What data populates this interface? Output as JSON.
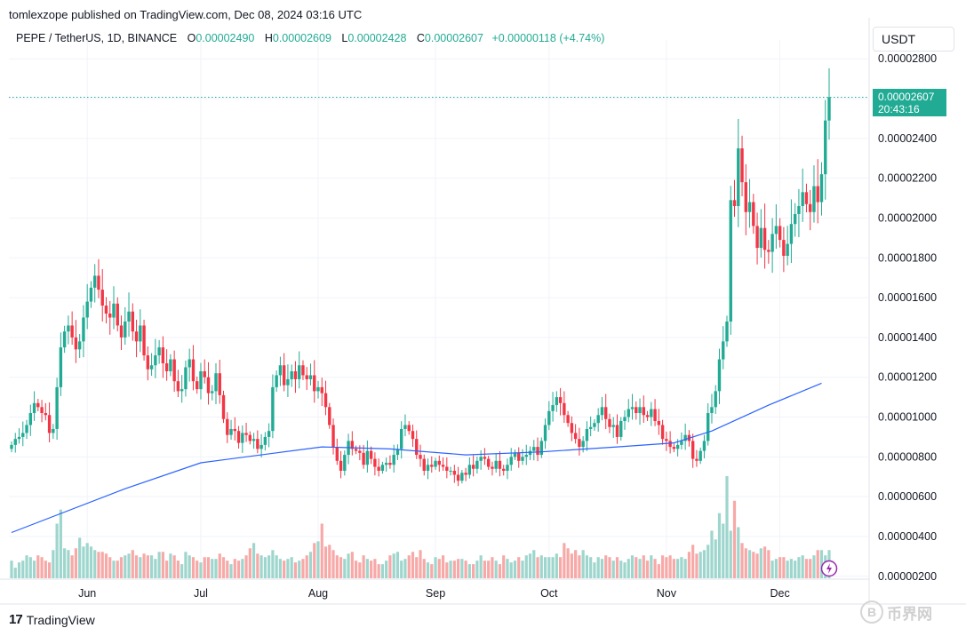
{
  "header": {
    "publisher": "tomlexzope published on TradingView.com, Dec 08, 2024 03:16 UTC",
    "symbol": "PEPE / TetherUS, 1D, BINANCE",
    "o_label": "O",
    "o": "0.00002490",
    "h_label": "H",
    "h": "0.00002609",
    "l_label": "L",
    "l": "0.00002428",
    "c_label": "C",
    "c": "0.00002607",
    "change": "+0.00000118 (+4.74%)"
  },
  "currency": "USDT",
  "price_badge": {
    "price": "0.00002607",
    "countdown": "20:43:16"
  },
  "footer": {
    "brand": "TradingView",
    "brand_mark": "17"
  },
  "watermark": {
    "coin": "B",
    "text": "币界网"
  },
  "colors": {
    "up": "#22ab94",
    "down": "#f23645",
    "ma": "#2962ff",
    "vol_up": "#9ed6cd",
    "vol_down": "#f7a9a7"
  },
  "chart_data": {
    "type": "candlestick",
    "y_unit": "USDT",
    "y_ticks": [
      2.8e-05,
      2.6e-05,
      2.4e-05,
      2.2e-05,
      2e-05,
      1.8e-05,
      1.6e-05,
      1.4e-05,
      1.2e-05,
      1e-05,
      8e-06,
      6e-06,
      4e-06,
      2e-06
    ],
    "y_tick_labels": [
      "0.00002800",
      "0.00002600",
      "0.00002400",
      "0.00002200",
      "0.00002000",
      "0.00001800",
      "0.00001600",
      "0.00001400",
      "0.00001200",
      "0.00001000",
      "0.00000800",
      "0.00000600",
      "0.00000400",
      "0.00000200"
    ],
    "ylim": [
      1.9e-06,
      2.85e-05
    ],
    "x_ticks": [
      {
        "label": "Jun",
        "index": 20
      },
      {
        "label": "Jul",
        "index": 50
      },
      {
        "label": "Aug",
        "index": 81
      },
      {
        "label": "Sep",
        "index": 112
      },
      {
        "label": "Oct",
        "index": 142
      },
      {
        "label": "Nov",
        "index": 173
      },
      {
        "label": "Dec",
        "index": 203
      }
    ],
    "close": [
      8.6,
      8.9,
      9.0,
      9.2,
      9.6,
      10.2,
      10.7,
      10.5,
      10.2,
      10.1,
      9.2,
      9.4,
      11.5,
      13.5,
      14.3,
      14.6,
      14.0,
      13.4,
      13.8,
      15.0,
      15.8,
      16.5,
      17.1,
      16.4,
      15.6,
      15.2,
      15.0,
      15.7,
      14.6,
      14.0,
      14.8,
      15.3,
      14.3,
      13.8,
      14.6,
      13.1,
      12.4,
      12.6,
      13.1,
      13.5,
      12.7,
      12.3,
      12.9,
      11.8,
      11.3,
      11.4,
      12.5,
      12.9,
      11.8,
      11.4,
      12.3,
      12.0,
      11.2,
      11.3,
      12.2,
      11.1,
      9.9,
      9.1,
      9.4,
      9.3,
      8.7,
      9.2,
      9.1,
      8.8,
      8.9,
      8.4,
      8.6,
      9.0,
      9.3,
      11.5,
      12.1,
      12.6,
      11.6,
      11.9,
      12.3,
      11.9,
      12.6,
      12.1,
      11.9,
      12.1,
      11.3,
      11.5,
      11.2,
      10.5,
      9.6,
      8.5,
      7.8,
      7.3,
      8.1,
      8.8,
      8.4,
      8.3,
      8.2,
      7.6,
      8.3,
      7.9,
      7.5,
      7.3,
      7.6,
      7.7,
      7.6,
      8.1,
      8.4,
      9.4,
      9.6,
      9.3,
      8.9,
      8.1,
      7.9,
      7.3,
      7.6,
      7.5,
      7.8,
      7.6,
      7.5,
      7.3,
      7.3,
      7.1,
      6.8,
      7.2,
      7.1,
      7.6,
      7.4,
      7.8,
      8.0,
      7.9,
      7.5,
      7.4,
      7.8,
      7.4,
      7.3,
      7.6,
      8.0,
      8.2,
      7.8,
      8.0,
      8.1,
      8.3,
      8.5,
      8.1,
      8.8,
      9.6,
      10.3,
      10.6,
      11.0,
      10.7,
      10.1,
      9.7,
      9.2,
      8.9,
      8.5,
      8.8,
      9.4,
      9.5,
      9.7,
      10.1,
      10.5,
      9.9,
      9.5,
      9.6,
      9.0,
      9.8,
      10.0,
      10.4,
      10.5,
      10.2,
      10.5,
      10.1,
      10.0,
      10.4,
      9.8,
      9.6,
      8.9,
      8.8,
      8.5,
      8.4,
      8.6,
      8.8,
      9.1,
      8.8,
      7.9,
      7.8,
      8.3,
      8.8,
      10.2,
      10.5,
      11.3,
      12.9,
      13.8,
      14.8,
      20.9,
      20.6,
      23.5,
      21.8,
      20.3,
      20.8,
      19.6,
      18.5,
      19.5,
      18.4,
      18.3,
      19.2,
      19.6,
      18.9,
      18.1,
      18.7,
      19.7,
      20.2,
      20.6,
      21.3,
      20.7,
      20.3,
      21.6,
      20.8,
      22.2,
      24.9,
      26.07
    ],
    "volume": [
      1.0,
      0.6,
      0.9,
      1.0,
      1.3,
      1.2,
      1.0,
      1.3,
      1.2,
      1.0,
      0.9,
      1.6,
      3.1,
      3.9,
      1.7,
      1.6,
      1.3,
      1.7,
      2.3,
      1.8,
      2.0,
      1.8,
      1.6,
      1.5,
      1.5,
      1.4,
      1.2,
      1.0,
      1.0,
      1.2,
      1.3,
      1.4,
      1.6,
      1.3,
      1.2,
      1.4,
      1.3,
      1.3,
      1.1,
      1.5,
      1.5,
      1.0,
      1.4,
      1.3,
      1.0,
      0.8,
      1.5,
      1.3,
      1.2,
      1.0,
      0.9,
      1.2,
      1.2,
      1.1,
      1.1,
      1.4,
      1.2,
      1.0,
      0.8,
      1.1,
      1.0,
      1.1,
      1.3,
      1.7,
      2.0,
      1.4,
      1.3,
      1.2,
      1.3,
      1.6,
      1.3,
      1.1,
      1.0,
      1.1,
      1.2,
      0.9,
      1.0,
      1.1,
      1.3,
      1.5,
      2.0,
      2.1,
      3.1,
      1.8,
      1.9,
      1.6,
      1.3,
      1.2,
      1.1,
      1.4,
      1.5,
      1.0,
      0.9,
      1.3,
      1.1,
      1.0,
      1.1,
      0.8,
      0.8,
      1.0,
      1.3,
      1.4,
      1.5,
      1.0,
      1.1,
      1.3,
      1.5,
      1.2,
      1.6,
      1.1,
      0.9,
      0.8,
      1.2,
      1.1,
      1.3,
      0.9,
      1.0,
      1.0,
      1.1,
      1.1,
      1.0,
      0.8,
      0.8,
      1.0,
      1.3,
      1.0,
      1.0,
      1.2,
      1.0,
      0.8,
      1.3,
      1.1,
      0.9,
      1.0,
      1.2,
      1.0,
      1.3,
      1.4,
      1.6,
      1.2,
      1.3,
      1.2,
      1.2,
      1.2,
      1.4,
      1.2,
      2.0,
      1.7,
      1.4,
      1.6,
      1.3,
      1.6,
      1.3,
      1.2,
      0.9,
      1.2,
      1.1,
      1.3,
      1.2,
      1.0,
      1.2,
      1.0,
      0.9,
      1.1,
      1.3,
      1.2,
      1.1,
      1.3,
      1.0,
      1.3,
      1.1,
      0.8,
      1.3,
      1.2,
      1.3,
      1.1,
      1.1,
      1.2,
      1.1,
      1.5,
      1.9,
      1.4,
      1.5,
      1.6,
      1.9,
      2.7,
      2.2,
      3.7,
      3.1,
      5.8,
      2.7,
      4.4,
      2.9,
      2.0,
      1.7,
      1.6,
      1.5,
      1.4,
      1.7,
      1.8,
      1.6,
      1.0,
      1.1,
      1.2,
      1.2,
      1.0,
      1.1,
      1.0,
      1.2,
      1.3,
      1.1,
      1.1,
      1.3,
      1.6,
      1.6,
      1.3,
      1.6
    ],
    "ma_line": [
      [
        0,
        4.2
      ],
      [
        30,
        6.4
      ],
      [
        50,
        7.7
      ],
      [
        70,
        8.2
      ],
      [
        82,
        8.5
      ],
      [
        100,
        8.4
      ],
      [
        120,
        8.1
      ],
      [
        140,
        8.25
      ],
      [
        160,
        8.5
      ],
      [
        175,
        8.7
      ],
      [
        185,
        9.3
      ],
      [
        200,
        10.6
      ],
      [
        214,
        11.7
      ]
    ]
  }
}
